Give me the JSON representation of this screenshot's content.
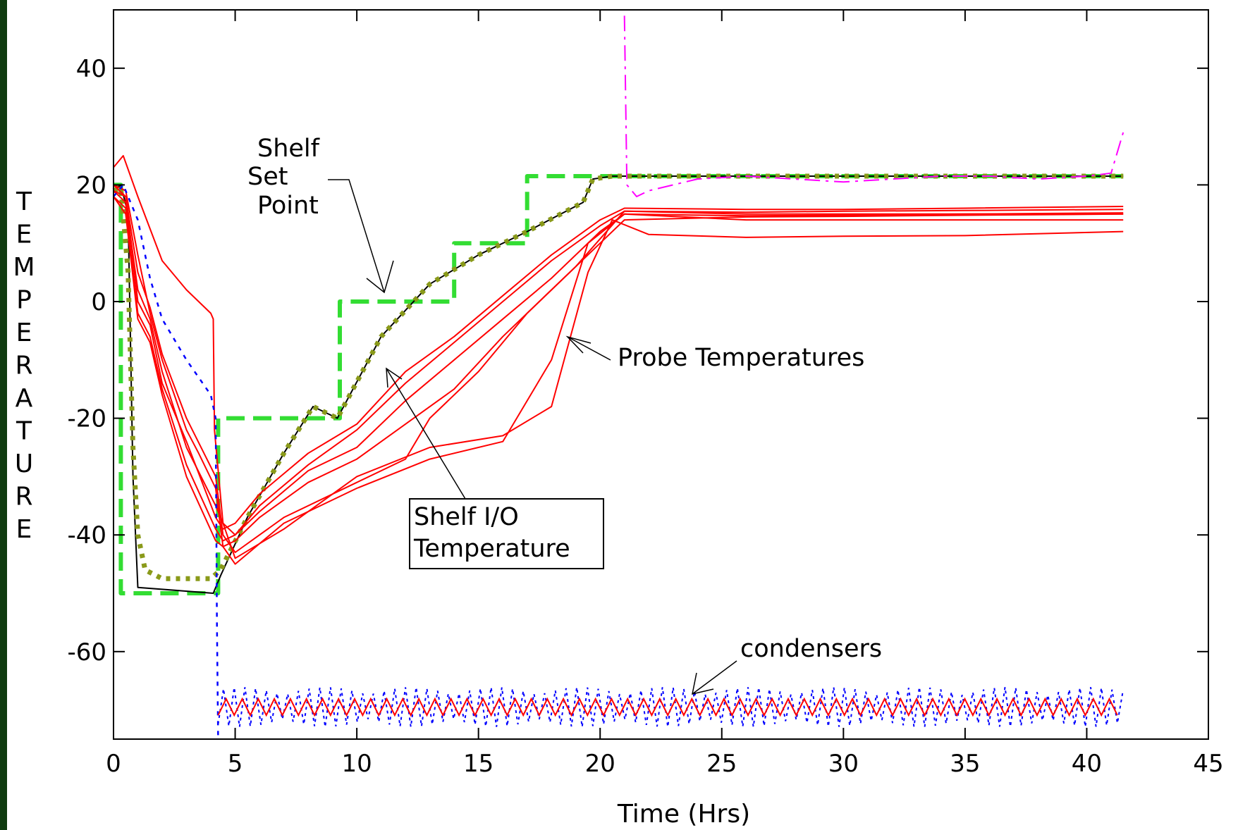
{
  "chart_data": {
    "type": "line",
    "xlabel": "Time (Hrs)",
    "ylabel": "TEMPERATURE",
    "xlim": [
      0,
      45
    ],
    "ylim": [
      -75,
      50
    ],
    "xticks": [
      "0",
      "5",
      "10",
      "15",
      "20",
      "25",
      "30",
      "35",
      "40",
      "45"
    ],
    "yticks": [
      "40",
      "20",
      "0",
      "-20",
      "-40",
      "-60"
    ],
    "grid": false,
    "annotations": {
      "shelf_set_point": [
        "Shelf",
        "Set",
        "Point"
      ],
      "probe_temperatures": "Probe Temperatures",
      "shelf_io": [
        "Shelf I/O",
        "Temperature"
      ],
      "condensers": "condensers"
    },
    "series": [
      {
        "role": "shelf-set-point",
        "color": "#33dd33",
        "style": "dashed",
        "x": [
          0,
          0.3,
          0.3,
          4.3,
          4.3,
          9.3,
          9.3,
          14,
          14,
          17,
          17,
          21,
          41.5
        ],
        "y": [
          20,
          20,
          -50,
          -50,
          -20,
          -20,
          0,
          0,
          10,
          10,
          21.5,
          21.5,
          21.5
        ]
      },
      {
        "role": "shelf-io-temperature",
        "color": "#000000",
        "style": "solid",
        "x": [
          0,
          0.3,
          0.6,
          0.8,
          1,
          4.1,
          4.4,
          5.5,
          7,
          8.2,
          9.2,
          11,
          13,
          15,
          17,
          19.3,
          19.7,
          20.5,
          41.5
        ],
        "y": [
          19,
          20,
          15,
          -30,
          -49,
          -50,
          -47,
          -37,
          -26,
          -18,
          -20,
          -6,
          3,
          8,
          12,
          17,
          21,
          21.5,
          21.5
        ]
      },
      {
        "role": "shelf-io-temperature-dotted",
        "color": "#8a9a1a",
        "style": "dotted",
        "x": [
          0,
          0.3,
          0.6,
          0.8,
          1,
          1.3,
          2,
          3,
          4,
          4.4,
          5.5,
          7,
          8.2,
          9.2,
          11,
          13,
          15,
          17,
          19.3,
          19.7,
          20.5,
          41.5
        ],
        "y": [
          19,
          19.5,
          5,
          -25,
          -40,
          -46,
          -47.5,
          -47.5,
          -47.5,
          -46,
          -37,
          -26,
          -18,
          -20,
          -6,
          3,
          8,
          12,
          17,
          21,
          21.5,
          21.5
        ]
      },
      {
        "role": "probe",
        "color": "#ff0000",
        "style": "solid",
        "x": [
          0,
          0.4,
          1,
          2,
          3,
          4,
          4.1,
          4.15,
          4.5,
          5,
          7,
          10,
          13,
          16,
          18,
          19.5,
          20.5,
          22,
          26,
          30,
          35,
          41.5
        ],
        "y": [
          23,
          25,
          18,
          7,
          2,
          -2,
          -3,
          -22,
          -38,
          -44,
          -39,
          -30,
          -25,
          -23,
          -18,
          5,
          14,
          11.5,
          11,
          11.2,
          11.3,
          12
        ]
      },
      {
        "role": "probe",
        "color": "#ff0000",
        "style": "solid",
        "x": [
          0,
          0.5,
          1,
          1.5,
          2,
          2.5,
          3,
          3.5,
          4.2,
          4.5,
          5,
          7,
          10,
          13,
          16,
          18,
          19.5,
          21,
          26,
          30,
          35,
          41.5
        ],
        "y": [
          20,
          19,
          8,
          -2,
          -10,
          -16,
          -22,
          -26,
          -32,
          -42,
          -45,
          -38,
          -32,
          -27,
          -24,
          -10,
          10,
          15,
          14,
          14,
          14,
          14
        ]
      },
      {
        "role": "probe",
        "color": "#ff0000",
        "style": "solid",
        "x": [
          0,
          0.5,
          1,
          1.5,
          2,
          3,
          4.2,
          4.5,
          5,
          7,
          10,
          12,
          13,
          15,
          17,
          19,
          21,
          26,
          30,
          35,
          41.5
        ],
        "y": [
          20,
          18,
          5,
          -1,
          -9,
          -20,
          -30,
          -40,
          -43,
          -37,
          -31,
          -27,
          -20,
          -12,
          -2,
          6,
          15.5,
          15,
          15,
          15,
          15
        ]
      },
      {
        "role": "probe",
        "color": "#ff0000",
        "style": "solid",
        "x": [
          0,
          0.5,
          1,
          1.5,
          2,
          3,
          4.2,
          4.5,
          5,
          6,
          8,
          10,
          12,
          14,
          16,
          18,
          20,
          21,
          26,
          30,
          35,
          41.5
        ],
        "y": [
          19,
          17,
          2,
          -3,
          -12,
          -25,
          -35,
          -38,
          -40,
          -35,
          -28,
          -22,
          -14,
          -7,
          0,
          7,
          13,
          15.5,
          15.3,
          15.5,
          15.6,
          15.8
        ]
      },
      {
        "role": "probe",
        "color": "#ff0000",
        "style": "solid",
        "x": [
          0,
          0.5,
          1,
          1.5,
          2,
          3,
          4.2,
          4.5,
          5,
          6,
          8,
          10,
          12,
          14,
          16,
          18,
          20,
          21,
          26,
          30,
          35,
          41.5
        ],
        "y": [
          19,
          18,
          0,
          -4,
          -14,
          -24,
          -37,
          -39,
          -38,
          -33,
          -26,
          -21,
          -12,
          -6,
          1,
          8,
          14,
          16,
          15.8,
          15.8,
          16,
          16.3
        ]
      },
      {
        "role": "probe",
        "color": "#ff0000",
        "style": "solid",
        "x": [
          0,
          0.5,
          1,
          1.5,
          2,
          3,
          4.2,
          4.5,
          5,
          6,
          8,
          10,
          12,
          14,
          16,
          18,
          20,
          21,
          26,
          30,
          35,
          41.5
        ],
        "y": [
          18,
          16,
          -2,
          -6,
          -15,
          -28,
          -39,
          -41,
          -40,
          -36,
          -29,
          -25,
          -17,
          -10,
          -3,
          4,
          12,
          15,
          14.7,
          14.8,
          15,
          15.2
        ]
      },
      {
        "role": "probe",
        "color": "#ff0000",
        "style": "solid",
        "x": [
          0,
          0.5,
          1,
          1.5,
          2,
          3,
          4.2,
          4.5,
          5,
          6,
          8,
          10,
          12,
          14,
          16,
          18,
          20,
          21,
          26,
          30,
          35,
          41.5
        ],
        "y": [
          18,
          15,
          -3,
          -7,
          -16,
          -30,
          -41,
          -42,
          -41,
          -37,
          -31,
          -27,
          -21,
          -15,
          -6,
          2,
          10,
          14,
          14.5,
          14.6,
          14.8,
          15
        ]
      },
      {
        "role": "probe-early-blue",
        "color": "#0000ff",
        "style": "dotted",
        "x": [
          0,
          0.4,
          1,
          1.5,
          2,
          3,
          4,
          4.2,
          4.25,
          4.3
        ],
        "y": [
          18,
          20,
          14,
          4,
          -3,
          -10,
          -16,
          -20,
          -55,
          -75
        ]
      },
      {
        "role": "magenta-trace",
        "color": "#ff00ff",
        "style": "dashdot",
        "x": [
          21,
          21.1,
          21.3,
          21.5,
          22,
          23,
          24,
          26,
          28,
          30,
          32,
          34,
          36,
          38,
          40,
          41,
          41.5
        ],
        "y": [
          49,
          20,
          19,
          18,
          19,
          20,
          21,
          21.5,
          21,
          20.5,
          21,
          21.5,
          21.5,
          21,
          21.5,
          22,
          29
        ]
      }
    ],
    "condensers": {
      "x_start": 4.3,
      "x_end": 41.5,
      "red_y_center": -69.5,
      "red_amplitude": 1.4,
      "blue_y_center": -69.5,
      "blue_amplitude": 3.4
    }
  }
}
